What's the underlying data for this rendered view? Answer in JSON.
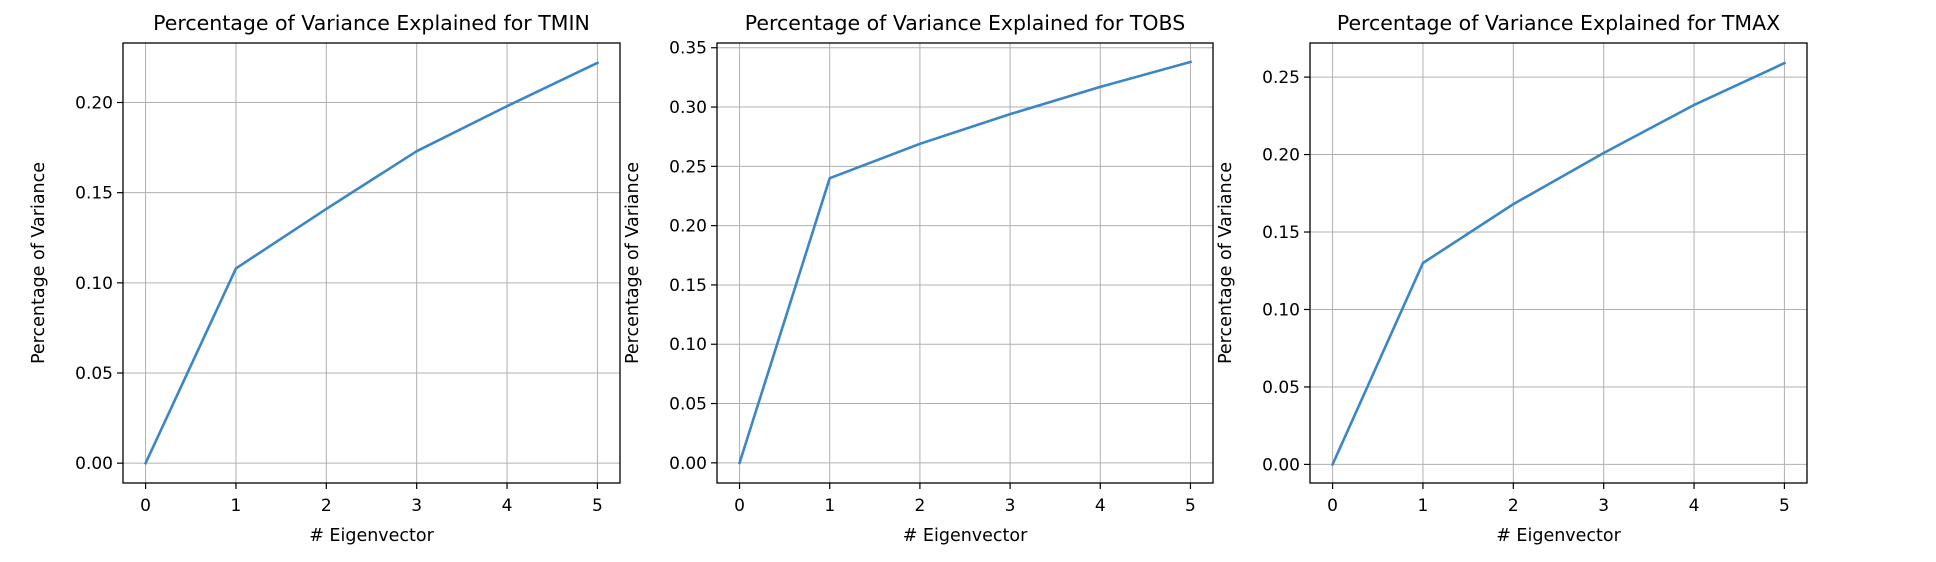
{
  "chart_data": [
    {
      "type": "line",
      "title": "Percentage of Variance Explained for TMIN",
      "xlabel": "# Eigenvector",
      "ylabel": "Percentage of Variance",
      "x": [
        0,
        1,
        2,
        3,
        4,
        5
      ],
      "xticks": [
        "0",
        "1",
        "2",
        "3",
        "4",
        "5"
      ],
      "yticks": [
        "0.00",
        "0.05",
        "0.10",
        "0.15",
        "0.20"
      ],
      "xlim": [
        -0.25,
        5.25
      ],
      "ylim": [
        -0.011,
        0.233
      ],
      "grid": true,
      "color": "#3b86c6",
      "series": [
        {
          "values": [
            0.0,
            0.108,
            0.141,
            0.173,
            0.198,
            0.222
          ]
        }
      ]
    },
    {
      "type": "line",
      "title": "Percentage of Variance Explained for TOBS",
      "xlabel": "# Eigenvector",
      "ylabel": "Percentage of Variance",
      "x": [
        0,
        1,
        2,
        3,
        4,
        5
      ],
      "xticks": [
        "0",
        "1",
        "2",
        "3",
        "4",
        "5"
      ],
      "yticks": [
        "0.00",
        "0.05",
        "0.10",
        "0.15",
        "0.20",
        "0.25",
        "0.30",
        "0.35"
      ],
      "xlim": [
        -0.25,
        5.25
      ],
      "ylim": [
        -0.017,
        0.354
      ],
      "grid": true,
      "color": "#3b86c6",
      "series": [
        {
          "values": [
            0.0,
            0.24,
            0.269,
            0.294,
            0.317,
            0.338
          ]
        }
      ]
    },
    {
      "type": "line",
      "title": "Percentage of Variance Explained for TMAX",
      "xlabel": "# Eigenvector",
      "ylabel": "Percentage of Variance",
      "x": [
        0,
        1,
        2,
        3,
        4,
        5
      ],
      "xticks": [
        "0",
        "1",
        "2",
        "3",
        "4",
        "5"
      ],
      "yticks": [
        "0.00",
        "0.05",
        "0.10",
        "0.15",
        "0.20",
        "0.25"
      ],
      "xlim": [
        -0.25,
        5.25
      ],
      "ylim": [
        -0.012,
        0.272
      ],
      "grid": true,
      "color": "#3b86c6",
      "series": [
        {
          "values": [
            0.0,
            0.13,
            0.168,
            0.201,
            0.232,
            0.259
          ]
        }
      ]
    }
  ]
}
